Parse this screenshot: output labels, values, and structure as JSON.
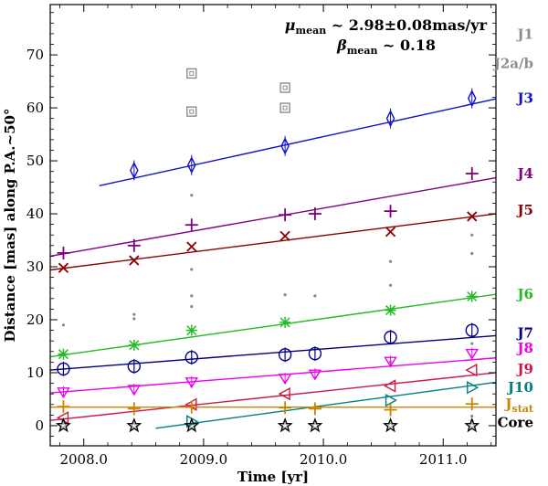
{
  "chart_data": {
    "type": "scatter",
    "title": "",
    "xlabel": "Time [yr]",
    "ylabel": "Distance [mas] along P.A.~50°",
    "xlim": [
      2007.72,
      2011.44
    ],
    "ylim": [
      -3.8,
      79.5
    ],
    "xticks": [
      2008.0,
      2009.0,
      2010.0,
      2011.0
    ],
    "xtick_labels": [
      "2008.0",
      "2009.0",
      "2010.0",
      "2011.0"
    ],
    "yticks": [
      0,
      10,
      20,
      30,
      40,
      50,
      60,
      70
    ],
    "ytick_labels": [
      "0",
      "10",
      "20",
      "30",
      "40",
      "50",
      "60",
      "70"
    ],
    "annotations": {
      "mu_symbol": "μ",
      "mu_sub": "mean",
      "mu_value": " ~ 2.98±0.08mas/yr",
      "beta_symbol": "β",
      "beta_sub": "mean",
      "beta_value": " ~ 0.18"
    },
    "series": [
      {
        "name": "J1",
        "label_main": "J1",
        "label_sub": "",
        "color": "#8c8c8c",
        "marker": "none",
        "label_y": 73.0,
        "x": [],
        "y": [],
        "fit": null
      },
      {
        "name": "J2a/b",
        "label_main": "J2a/b",
        "label_sub": "",
        "color": "#8c8c8c",
        "marker": "boxed-square",
        "label_y": 67.5,
        "x": [
          2008.9,
          2008.9,
          2009.68,
          2009.68
        ],
        "y": [
          66.5,
          59.3,
          63.8,
          60.0
        ],
        "fit": null
      },
      {
        "name": "J3",
        "label_main": "J3",
        "label_sub": "",
        "color": "#1010c8",
        "marker": "thin-diamond",
        "label_y": 61.0,
        "x": [
          2008.42,
          2008.9,
          2009.68,
          2010.56,
          2011.24
        ],
        "y": [
          48.2,
          49.2,
          52.8,
          58.0,
          61.8
        ],
        "fit": [
          [
            2008.13,
            45.3
          ],
          [
            2011.44,
            61.7
          ]
        ]
      },
      {
        "name": "J4",
        "label_main": "J4",
        "label_sub": "",
        "color": "#800080",
        "marker": "plus",
        "label_y": 46.7,
        "x": [
          2007.83,
          2008.42,
          2008.9,
          2009.68,
          2009.93,
          2010.56,
          2011.24
        ],
        "y": [
          32.6,
          34.0,
          37.9,
          39.8,
          40.0,
          40.5,
          47.6
        ],
        "fit": [
          [
            2007.72,
            32.0
          ],
          [
            2011.44,
            46.8
          ]
        ]
      },
      {
        "name": "J5",
        "label_main": "J5",
        "label_sub": "",
        "color": "#8b0000",
        "marker": "x",
        "label_y": 39.8,
        "x": [
          2007.83,
          2008.42,
          2008.9,
          2009.68,
          2010.56,
          2011.24
        ],
        "y": [
          29.8,
          31.2,
          33.8,
          35.8,
          36.6,
          39.5
        ],
        "fit": [
          [
            2007.72,
            29.4
          ],
          [
            2011.44,
            40.0
          ]
        ]
      },
      {
        "name": "J6",
        "label_main": "J6",
        "label_sub": "",
        "color": "#22bb22",
        "marker": "asterisk",
        "label_y": 24.0,
        "x": [
          2007.83,
          2008.42,
          2008.9,
          2009.68,
          2010.56,
          2011.24
        ],
        "y": [
          13.5,
          15.2,
          18.0,
          19.5,
          21.8,
          24.4
        ],
        "fit": [
          [
            2007.72,
            13.0
          ],
          [
            2011.44,
            24.8
          ]
        ]
      },
      {
        "name": "J7",
        "label_main": "J7",
        "label_sub": "",
        "color": "#000080",
        "marker": "circle-bar",
        "label_y": 16.6,
        "x": [
          2007.83,
          2008.42,
          2008.9,
          2009.68,
          2009.93,
          2010.56,
          2011.24
        ],
        "y": [
          10.7,
          11.2,
          12.9,
          13.4,
          13.6,
          16.7,
          18.0
        ],
        "fit": [
          [
            2007.72,
            10.5
          ],
          [
            2011.44,
            17.0
          ]
        ]
      },
      {
        "name": "J8",
        "label_main": "J8",
        "label_sub": "",
        "color": "#ee00ee",
        "marker": "triangle-down-bar",
        "label_y": 13.8,
        "x": [
          2007.83,
          2008.42,
          2008.9,
          2009.68,
          2009.93,
          2010.56,
          2011.24
        ],
        "y": [
          6.4,
          6.9,
          8.3,
          9.0,
          9.8,
          12.2,
          13.7
        ],
        "fit": [
          [
            2007.72,
            6.2
          ],
          [
            2011.44,
            12.8
          ]
        ]
      },
      {
        "name": "J9",
        "label_main": "J9",
        "label_sub": "",
        "color": "#cc1844",
        "marker": "triangle-left",
        "label_y": 9.8,
        "x": [
          2007.83,
          2008.9,
          2009.68,
          2010.56,
          2011.24
        ],
        "y": [
          1.5,
          4.0,
          6.0,
          7.5,
          10.5
        ],
        "fit": [
          [
            2007.72,
            1.0
          ],
          [
            2011.44,
            10.0
          ]
        ]
      },
      {
        "name": "J10",
        "label_main": "J10",
        "label_sub": "",
        "color": "#008080",
        "marker": "triangle-right",
        "label_y": 6.4,
        "x": [
          2008.9,
          2010.56,
          2011.24
        ],
        "y": [
          0.8,
          4.8,
          7.2
        ],
        "fit": [
          [
            2008.6,
            -0.5
          ],
          [
            2011.44,
            8.2
          ]
        ]
      },
      {
        "name": "Jstat",
        "label_main": "J",
        "label_sub": "stat",
        "color": "#cc8400",
        "marker": "plus",
        "label_y": 3.3,
        "x": [
          2007.83,
          2008.42,
          2008.9,
          2009.68,
          2009.93,
          2010.56,
          2011.24
        ],
        "y": [
          3.6,
          3.2,
          3.5,
          3.4,
          3.2,
          3.0,
          4.1
        ],
        "fit": [
          [
            2007.72,
            3.5
          ],
          [
            2011.44,
            3.5
          ]
        ]
      },
      {
        "name": "Core",
        "label_main": "Core",
        "label_sub": "",
        "color": "#000000",
        "marker": "star",
        "label_y": -0.3,
        "x": [
          2007.83,
          2008.42,
          2008.9,
          2009.68,
          2009.93,
          2010.56,
          2011.24
        ],
        "y": [
          0,
          0,
          0,
          0,
          0,
          0,
          0
        ],
        "fit": null
      }
    ],
    "faint_components": {
      "color": "#888888",
      "x": [
        2007.83,
        2008.42,
        2008.42,
        2008.9,
        2008.9,
        2008.9,
        2008.9,
        2008.9,
        2009.68,
        2009.93,
        2010.56,
        2010.56,
        2010.56,
        2011.24,
        2011.24,
        2011.24,
        2011.24,
        2011.24
      ],
      "y": [
        19.0,
        21.0,
        20.2,
        43.5,
        29.5,
        24.5,
        22.5,
        7.5,
        24.7,
        24.5,
        31.0,
        26.5,
        12.0,
        36.0,
        32.5,
        15.5,
        1.8,
        1.0
      ]
    }
  }
}
